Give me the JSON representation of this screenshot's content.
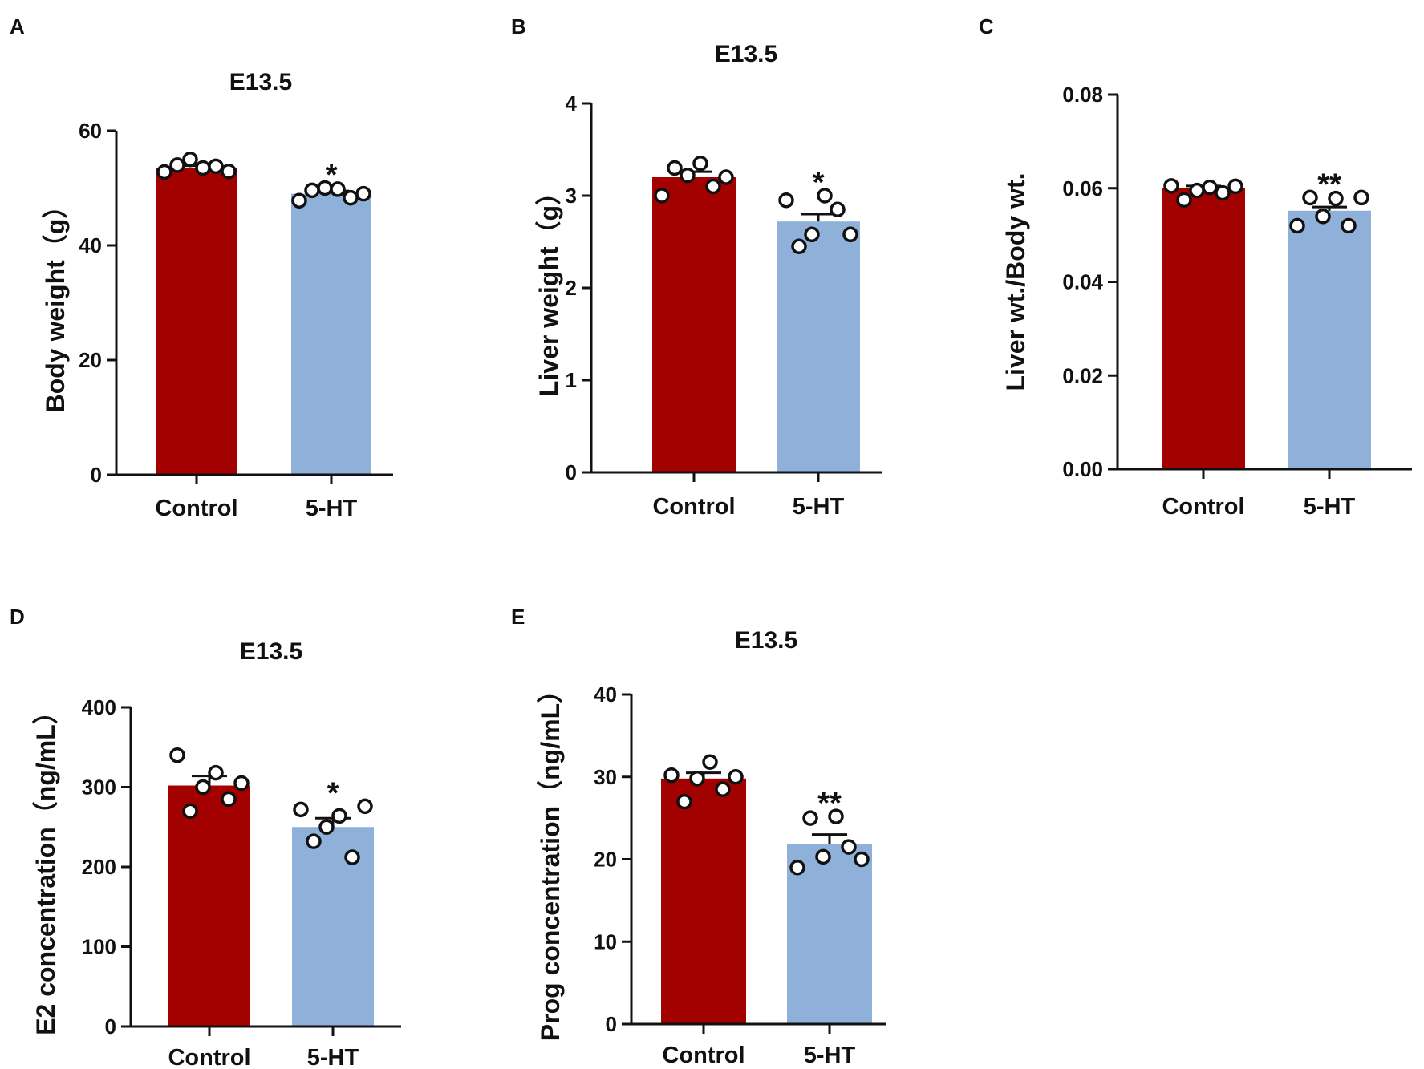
{
  "figure": {
    "colors": {
      "control": "#a30000",
      "treated": "#8fb0d8",
      "axis": "#111111",
      "point_fill": "#ffffff"
    }
  },
  "chart_data": [
    {
      "panel": "A",
      "type": "bar",
      "title": "E13.5",
      "ylabel": "Body weight（g）",
      "categories": [
        "Control",
        "5-HT"
      ],
      "ylim": [
        0,
        60
      ],
      "yticks": [
        0,
        20,
        40,
        60
      ],
      "ytick_labels": [
        "0",
        "20",
        "40",
        "60"
      ],
      "values": [
        53.5,
        49.0
      ],
      "sem": [
        0.4,
        0.5
      ],
      "points": [
        [
          52.8,
          54.0,
          55.0,
          53.5,
          53.8,
          52.9
        ],
        [
          47.8,
          49.6,
          50.0,
          49.8,
          48.3,
          49.0
        ]
      ],
      "significance": [
        "",
        "*"
      ]
    },
    {
      "panel": "B",
      "type": "bar",
      "title": "E13.5",
      "ylabel": "Liver weight（g）",
      "categories": [
        "Control",
        "5-HT"
      ],
      "ylim": [
        0,
        4
      ],
      "yticks": [
        0,
        1,
        2,
        3,
        4
      ],
      "ytick_labels": [
        "0",
        "1",
        "2",
        "3",
        "4"
      ],
      "values": [
        3.2,
        2.72
      ],
      "sem": [
        0.06,
        0.08
      ],
      "points": [
        [
          3.0,
          3.3,
          3.22,
          3.35,
          3.1,
          3.2
        ],
        [
          2.95,
          2.45,
          2.58,
          3.0,
          2.85,
          2.58
        ]
      ],
      "significance": [
        "",
        "*"
      ]
    },
    {
      "panel": "C",
      "type": "bar",
      "title": "",
      "ylabel": "Liver wt./Body wt.",
      "categories": [
        "Control",
        "5-HT"
      ],
      "ylim": [
        0,
        0.08
      ],
      "yticks": [
        0,
        0.02,
        0.04,
        0.06,
        0.08
      ],
      "ytick_labels": [
        "0.00",
        "0.02",
        "0.04",
        "0.06",
        "0.08"
      ],
      "values": [
        0.06,
        0.0552
      ],
      "sem": [
        0.0005,
        0.0008
      ],
      "points": [
        [
          0.0605,
          0.0575,
          0.0595,
          0.0602,
          0.059,
          0.0604
        ],
        [
          0.052,
          0.058,
          0.054,
          0.0578,
          0.052,
          0.058
        ]
      ],
      "significance": [
        "",
        "**"
      ]
    },
    {
      "panel": "D",
      "type": "bar",
      "title": "E13.5",
      "ylabel": "E2 concentration（ng/mL）",
      "categories": [
        "Control",
        "5-HT"
      ],
      "ylim": [
        0,
        400
      ],
      "yticks": [
        0,
        100,
        200,
        300,
        400
      ],
      "ytick_labels": [
        "0",
        "100",
        "200",
        "300",
        "400"
      ],
      "values": [
        302,
        250
      ],
      "sem": [
        12,
        11
      ],
      "points": [
        [
          340,
          270,
          300,
          318,
          285,
          305
        ],
        [
          272,
          232,
          250,
          264,
          212,
          276
        ]
      ],
      "significance": [
        "",
        "*"
      ]
    },
    {
      "panel": "E",
      "type": "bar",
      "title": "E13.5",
      "ylabel": "Prog concentration（ng/mL）",
      "categories": [
        "Control",
        "5-HT"
      ],
      "ylim": [
        0,
        40
      ],
      "yticks": [
        0,
        10,
        20,
        30,
        40
      ],
      "ytick_labels": [
        "0",
        "10",
        "20",
        "30",
        "40"
      ],
      "values": [
        29.8,
        21.8
      ],
      "sem": [
        0.7,
        1.2
      ],
      "points": [
        [
          30.2,
          27.0,
          29.8,
          31.8,
          28.5,
          30.0
        ],
        [
          19.0,
          25.0,
          20.3,
          25.2,
          21.5,
          20.0
        ]
      ],
      "significance": [
        "",
        "**"
      ]
    }
  ]
}
